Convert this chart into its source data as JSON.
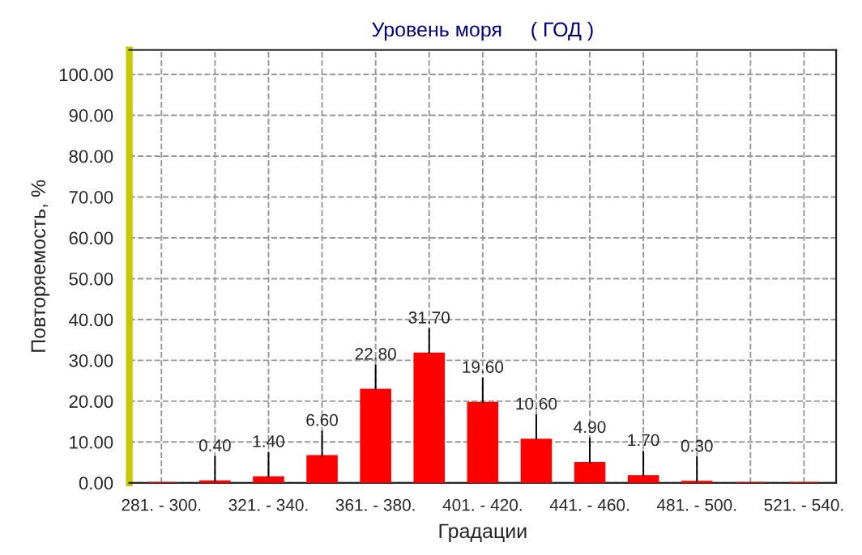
{
  "chart_data": {
    "type": "bar",
    "title": "Уровень моря     ( ГОД )",
    "xlabel": "Градации",
    "ylabel": "Повторяемость, %",
    "categories": [
      "281. - 300.",
      null,
      "321. - 340.",
      null,
      "361. - 380.",
      null,
      "401. - 420.",
      null,
      "441. - 460.",
      null,
      "481. - 500.",
      null,
      "521. - 540."
    ],
    "values": [
      0,
      0.4,
      1.4,
      6.6,
      22.8,
      31.7,
      19.6,
      10.6,
      4.9,
      1.7,
      0.3,
      0,
      0
    ],
    "value_labels": [
      null,
      "0.40",
      "1.40",
      "6.60",
      "22.80",
      "31.70",
      "19.60",
      "10.60",
      "4.90",
      "1.70",
      "0.30",
      null,
      null
    ],
    "color": "#ff0000",
    "ylim": [
      0,
      106
    ],
    "yticks": [
      {
        "value": 0,
        "label": "0.00"
      },
      {
        "value": 10,
        "label": "10.00"
      },
      {
        "value": 20,
        "label": "20.00"
      },
      {
        "value": 30,
        "label": "30.00"
      },
      {
        "value": 40,
        "label": "40.00"
      },
      {
        "value": 50,
        "label": "50.00"
      },
      {
        "value": 60,
        "label": "60.00"
      },
      {
        "value": 70,
        "label": "70.00"
      },
      {
        "value": 80,
        "label": "80.00"
      },
      {
        "value": 90,
        "label": "90.00"
      },
      {
        "value": 100,
        "label": "100.00"
      }
    ],
    "grid": true,
    "legend": false
  }
}
